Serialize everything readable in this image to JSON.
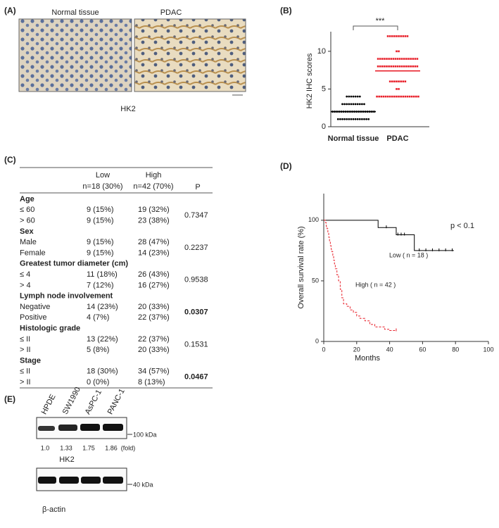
{
  "panel_a": {
    "label": "(A)",
    "images": [
      "Normal tissue",
      "PDAC"
    ],
    "caption": "HK2"
  },
  "chart_data": [
    {
      "type": "strip",
      "label": "(B)",
      "ylabel": "HK2 IHC scores",
      "categories": [
        "Normal tissue",
        "PDAC"
      ],
      "significance": "***",
      "ylim": [
        0,
        12.6
      ],
      "yticks": [
        0,
        5,
        10
      ],
      "groups": [
        {
          "color": "#000000",
          "mean": 2.0,
          "levels": [
            {
              "y": 1,
              "count": 15
            },
            {
              "y": 2,
              "count": 20
            },
            {
              "y": 3,
              "count": 11
            },
            {
              "y": 4,
              "count": 7
            }
          ]
        },
        {
          "color": "#e8212b",
          "mean": 7.4,
          "levels": [
            {
              "y": 4,
              "count": 20
            },
            {
              "y": 5,
              "count": 2
            },
            {
              "y": 6,
              "count": 8
            },
            {
              "y": 8,
              "count": 19
            },
            {
              "y": 9,
              "count": 19
            },
            {
              "y": 10,
              "count": 2
            },
            {
              "y": 12,
              "count": 10
            }
          ]
        }
      ]
    },
    {
      "type": "step",
      "label": "(D)",
      "xlabel": "Months",
      "ylabel": "Overall survival rate (%)",
      "xlim": [
        0,
        100
      ],
      "ylim": [
        0,
        122
      ],
      "xticks": [
        0,
        20,
        40,
        60,
        80,
        100
      ],
      "yticks": [
        0,
        50,
        100
      ],
      "annotation": "p < 0.1",
      "series": [
        {
          "name": "Low ( n = 18 )",
          "color": "#000000",
          "dash": false,
          "x": [
            0,
            33,
            44,
            55,
            79
          ],
          "y": [
            100,
            94,
            88,
            75,
            75
          ],
          "censor_x": [
            38,
            45,
            47,
            49,
            58,
            62,
            66,
            70,
            74,
            78
          ]
        },
        {
          "name": "High ( n = 42 )",
          "color": "#e8212b",
          "dash": true,
          "x": [
            0,
            1,
            1.5,
            2,
            2.5,
            3,
            3.5,
            4,
            4.5,
            5,
            5.5,
            6,
            6.5,
            7,
            8,
            9,
            10,
            11,
            12,
            14,
            16,
            18,
            20,
            22,
            25,
            28,
            31,
            34,
            37,
            40,
            44
          ],
          "y": [
            100,
            98,
            95,
            93,
            90,
            86,
            83,
            79,
            76,
            74,
            71,
            67,
            64,
            60,
            55,
            50,
            43,
            36,
            31,
            29,
            26,
            24,
            21,
            19,
            17,
            14,
            12,
            12,
            10,
            9,
            9
          ],
          "censor_x": [
            44
          ]
        }
      ]
    }
  ],
  "table": {
    "label": "(C)",
    "columns": [
      "Low",
      "High"
    ],
    "counts": [
      "n=18 (30%)",
      "n=42 (70%)"
    ],
    "p_header": "P",
    "groups": [
      {
        "name": "Age",
        "rows": [
          [
            "≤ 60",
            "9 (15%)",
            "19 (32%)"
          ],
          [
            "> 60",
            "9 (15%)",
            "23 (38%)"
          ]
        ],
        "p": "0.7347",
        "significant": false
      },
      {
        "name": "Sex",
        "rows": [
          [
            "Male",
            "9 (15%)",
            "28 (47%)"
          ],
          [
            "Female",
            "9 (15%)",
            "14 (23%)"
          ]
        ],
        "p": "0.2237",
        "significant": false
      },
      {
        "name": "Greatest tumor diameter (cm)",
        "rows": [
          [
            "≤ 4",
            "11 (18%)",
            "26 (43%)"
          ],
          [
            "> 4",
            "7 (12%)",
            "16 (27%)"
          ]
        ],
        "p": "0.9538",
        "significant": false
      },
      {
        "name": "Lymph node involvement",
        "rows": [
          [
            "Negative",
            "14 (23%)",
            "20 (33%)"
          ],
          [
            "Positive",
            "4 (7%)",
            "22 (37%)"
          ]
        ],
        "p": "0.0307",
        "significant": true
      },
      {
        "name": "Histologic grade",
        "rows": [
          [
            "≤ II",
            "13 (22%)",
            "22 (37%)"
          ],
          [
            "> II",
            "5 (8%)",
            "20 (33%)"
          ]
        ],
        "p": "0.1531",
        "significant": false
      },
      {
        "name": "Stage",
        "rows": [
          [
            "≤ II",
            "18 (30%)",
            "34 (57%)"
          ],
          [
            "> II",
            "0 (0%)",
            "8 (13%)"
          ]
        ],
        "p": "0.0467",
        "significant": true
      }
    ]
  },
  "blot": {
    "label": "(E)",
    "lanes": [
      "HPDE",
      "SW1990",
      "AsPC-1",
      "PANC-1"
    ],
    "hk2_marker": "100 kDa",
    "fold": [
      "1.0",
      "1.33",
      "1.75",
      "1.86"
    ],
    "fold_unit": "(fold)",
    "hk2_label": "HK2",
    "actin_marker": "40 kDa",
    "actin_label": "β-actin"
  }
}
